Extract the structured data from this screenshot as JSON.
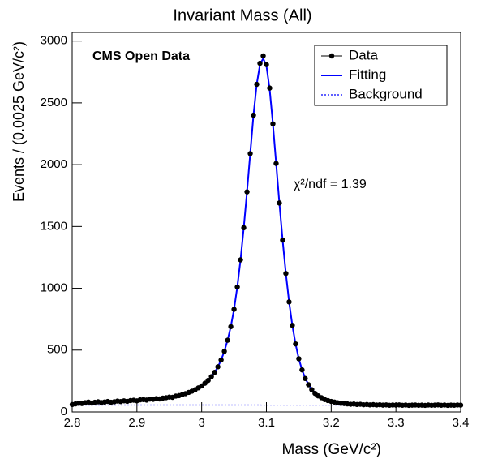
{
  "chart_data": {
    "type": "scatter",
    "title": "Invariant Mass (All)",
    "x_label": "Mass (GeV/c²)",
    "y_label": "Events / (0.0025 GeV/c²)",
    "annotations": [
      "CMS Open Data",
      "χ²/ndf = 1.39"
    ],
    "xlim": [
      2.8,
      3.4
    ],
    "xticks": [
      2.8,
      2.9,
      3,
      3.1,
      3.2,
      3.3,
      3.4
    ],
    "ylim": [
      0,
      3070
    ],
    "yticks": [
      0,
      500,
      1000,
      1500,
      2000,
      2500,
      3000
    ],
    "legend": "top-right",
    "series": [
      {
        "name": "Data",
        "color": "#000000",
        "kind": "points",
        "x": [
          2.8,
          2.805,
          2.81,
          2.815,
          2.82,
          2.825,
          2.83,
          2.835,
          2.84,
          2.845,
          2.85,
          2.855,
          2.86,
          2.865,
          2.87,
          2.875,
          2.88,
          2.885,
          2.89,
          2.895,
          2.9,
          2.905,
          2.91,
          2.915,
          2.92,
          2.925,
          2.93,
          2.935,
          2.94,
          2.945,
          2.95,
          2.955,
          2.96,
          2.965,
          2.97,
          2.975,
          2.98,
          2.985,
          2.99,
          2.995,
          3.0,
          3.005,
          3.01,
          3.015,
          3.02,
          3.025,
          3.03,
          3.035,
          3.04,
          3.045,
          3.05,
          3.055,
          3.06,
          3.065,
          3.07,
          3.075,
          3.08,
          3.085,
          3.09,
          3.095,
          3.1,
          3.105,
          3.11,
          3.115,
          3.12,
          3.125,
          3.13,
          3.135,
          3.14,
          3.145,
          3.15,
          3.155,
          3.16,
          3.165,
          3.17,
          3.175,
          3.18,
          3.185,
          3.19,
          3.195,
          3.2,
          3.205,
          3.21,
          3.215,
          3.22,
          3.225,
          3.23,
          3.235,
          3.24,
          3.245,
          3.25,
          3.255,
          3.26,
          3.265,
          3.27,
          3.275,
          3.28,
          3.285,
          3.29,
          3.295,
          3.3,
          3.305,
          3.31,
          3.315,
          3.32,
          3.325,
          3.33,
          3.335,
          3.34,
          3.345,
          3.35,
          3.355,
          3.36,
          3.365,
          3.37,
          3.375,
          3.38,
          3.385,
          3.39,
          3.395,
          3.4
        ],
        "values": [
          60,
          65,
          70,
          68,
          75,
          80,
          72,
          78,
          82,
          76,
          80,
          85,
          78,
          82,
          88,
          84,
          90,
          86,
          92,
          95,
          90,
          98,
          100,
          96,
          104,
          102,
          108,
          105,
          112,
          115,
          120,
          118,
          128,
          132,
          140,
          148,
          158,
          168,
          180,
          195,
          210,
          232,
          255,
          285,
          320,
          365,
          420,
          490,
          580,
          690,
          830,
          1010,
          1230,
          1490,
          1780,
          2090,
          2400,
          2650,
          2820,
          2880,
          2810,
          2620,
          2330,
          2010,
          1690,
          1390,
          1120,
          890,
          700,
          550,
          430,
          340,
          270,
          220,
          180,
          150,
          130,
          115,
          100,
          92,
          85,
          80,
          74,
          70,
          68,
          65,
          62,
          64,
          60,
          62,
          58,
          60,
          57,
          59,
          56,
          58,
          55,
          57,
          54,
          56,
          55,
          57,
          54,
          56,
          53,
          55,
          56,
          54,
          55,
          53,
          56,
          54,
          55,
          57,
          54,
          56,
          53,
          55,
          54,
          56,
          55
        ]
      },
      {
        "name": "Fitting",
        "color": "#0000ff",
        "kind": "line",
        "x": [
          2.8,
          2.805,
          2.81,
          2.815,
          2.82,
          2.825,
          2.83,
          2.835,
          2.84,
          2.845,
          2.85,
          2.855,
          2.86,
          2.865,
          2.87,
          2.875,
          2.88,
          2.885,
          2.89,
          2.895,
          2.9,
          2.905,
          2.91,
          2.915,
          2.92,
          2.925,
          2.93,
          2.935,
          2.94,
          2.945,
          2.95,
          2.955,
          2.96,
          2.965,
          2.97,
          2.975,
          2.98,
          2.985,
          2.99,
          2.995,
          3.0,
          3.005,
          3.01,
          3.015,
          3.02,
          3.025,
          3.03,
          3.035,
          3.04,
          3.045,
          3.05,
          3.055,
          3.06,
          3.065,
          3.07,
          3.075,
          3.08,
          3.085,
          3.09,
          3.095,
          3.1,
          3.105,
          3.11,
          3.115,
          3.12,
          3.125,
          3.13,
          3.135,
          3.14,
          3.145,
          3.15,
          3.155,
          3.16,
          3.165,
          3.17,
          3.175,
          3.18,
          3.185,
          3.19,
          3.195,
          3.2,
          3.205,
          3.21,
          3.215,
          3.22,
          3.225,
          3.23,
          3.235,
          3.24,
          3.245,
          3.25,
          3.255,
          3.26,
          3.265,
          3.27,
          3.275,
          3.28,
          3.285,
          3.29,
          3.295,
          3.3,
          3.305,
          3.31,
          3.315,
          3.32,
          3.325,
          3.33,
          3.335,
          3.34,
          3.345,
          3.35,
          3.355,
          3.36,
          3.365,
          3.37,
          3.375,
          3.38,
          3.385,
          3.39,
          3.395,
          3.4
        ],
        "values": [
          62,
          64,
          66,
          68,
          70,
          72,
          73,
          75,
          77,
          78,
          80,
          82,
          83,
          85,
          87,
          88,
          90,
          92,
          93,
          95,
          97,
          99,
          101,
          103,
          105,
          107,
          109,
          111,
          114,
          117,
          120,
          124,
          129,
          134,
          141,
          149,
          158,
          169,
          181,
          196,
          212,
          232,
          256,
          285,
          320,
          364,
          420,
          490,
          580,
          690,
          830,
          1010,
          1230,
          1490,
          1780,
          2090,
          2400,
          2650,
          2810,
          2860,
          2800,
          2610,
          2330,
          2010,
          1690,
          1390,
          1120,
          890,
          700,
          550,
          430,
          340,
          272,
          222,
          183,
          153,
          131,
          115,
          102,
          92,
          84,
          78,
          73,
          69,
          66,
          64,
          62,
          60,
          59,
          58,
          57,
          57,
          56,
          56,
          56,
          55,
          55,
          55,
          55,
          55,
          55,
          55,
          55,
          55,
          55,
          55,
          55,
          55,
          55,
          55,
          55,
          55,
          55,
          55,
          55,
          55,
          55,
          55,
          55,
          55,
          55
        ]
      },
      {
        "name": "Background",
        "color": "#0000ff",
        "kind": "dotted",
        "x": [
          2.8,
          3.4
        ],
        "values": [
          56,
          55
        ]
      }
    ]
  }
}
